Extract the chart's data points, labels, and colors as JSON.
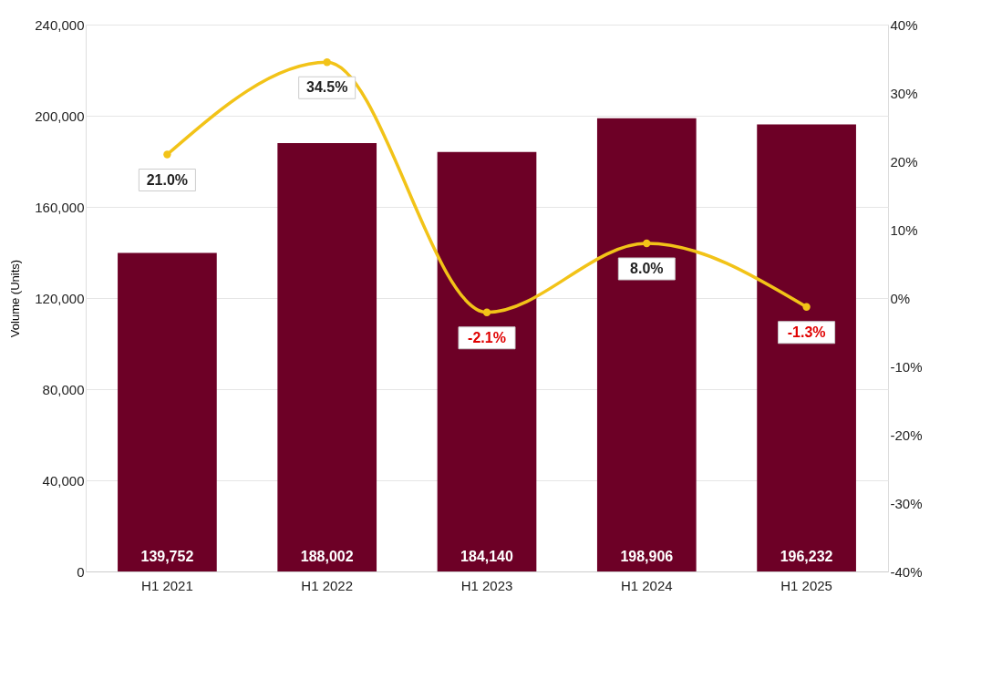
{
  "chart_data": {
    "type": "bar",
    "ylabel": "Volume (Units)",
    "categories": [
      "H1 2021",
      "H1 2022",
      "H1 2023",
      "H1 2024",
      "H1 2025"
    ],
    "series": [
      {
        "color": "#6d0026",
        "values": [
          139752,
          188002,
          184140,
          198906,
          196232
        ],
        "value_labels": [
          "139,752",
          "188,002",
          "184,140",
          "198,906",
          "196,232"
        ]
      },
      {
        "type": "line",
        "axis": "y2",
        "color": "#f2c318",
        "values": [
          21.0,
          34.5,
          -2.1,
          8.0,
          -1.3
        ],
        "value_labels": [
          "21.0%",
          "34.5%",
          "-2.1%",
          "8.0%",
          "-1.3%"
        ]
      }
    ],
    "ylim": [
      0,
      240000
    ],
    "yticks": [
      0,
      {
        "value": 40000,
        "label": "40,000"
      },
      {
        "value": 80000,
        "label": "80,000"
      },
      {
        "value": 120000,
        "label": "120,000"
      },
      {
        "value": 160000,
        "label": "160,000"
      },
      {
        "value": 200000,
        "label": "200,000"
      },
      {
        "value": 240000,
        "label": "240,000"
      }
    ],
    "y2lim": [
      -40,
      40
    ],
    "y2ticks": [
      {
        "value": -40,
        "label": "-40%"
      },
      {
        "value": -30,
        "label": "-30%"
      },
      {
        "value": -20,
        "label": "-20%"
      },
      {
        "value": -10,
        "label": "-10%"
      },
      {
        "value": 0,
        "label": "0%"
      },
      {
        "value": 10,
        "label": "10%"
      },
      {
        "value": 20,
        "label": "20%"
      },
      {
        "value": 30,
        "label": "30%"
      },
      {
        "value": 40,
        "label": "40%"
      }
    ],
    "grid": "y",
    "marker": "circle",
    "line_style": "solid"
  }
}
